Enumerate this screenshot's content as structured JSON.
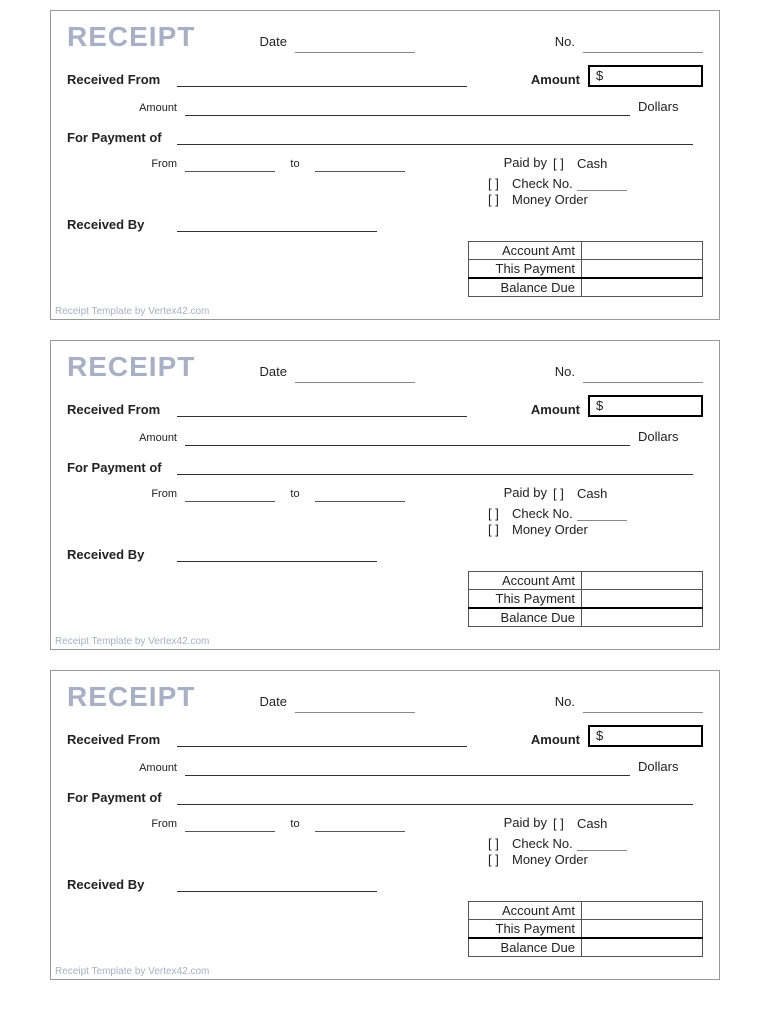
{
  "title": "RECEIPT",
  "labels": {
    "date": "Date",
    "no": "No.",
    "received_from": "Received From",
    "amount_box_label": "Amount",
    "amount_text_label": "Amount",
    "dollars": "Dollars",
    "for_payment_of": "For Payment of",
    "from": "From",
    "to": "to",
    "paid_by": "Paid by",
    "cash": "Cash",
    "check_no": "Check No.",
    "money_order": "Money Order",
    "received_by": "Received By",
    "account_amt": "Account Amt",
    "this_payment": "This Payment",
    "balance_due": "Balance Due"
  },
  "amount_prefix": "$",
  "checkbox_glyph": "[  ]",
  "footer": "Receipt Template by Vertex42.com",
  "colors": {
    "title_color": "#a8b0c5",
    "border_color": "#999999",
    "text_color": "#222222"
  },
  "receipt_count": 3
}
